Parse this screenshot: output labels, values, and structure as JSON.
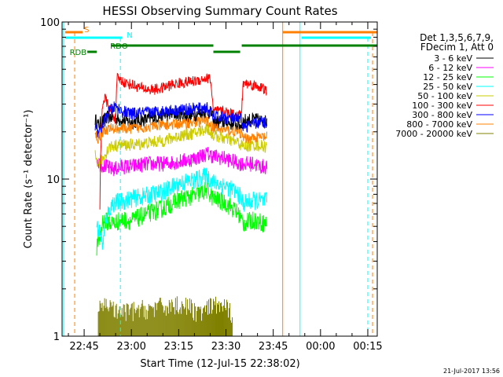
{
  "chart_data": {
    "type": "line",
    "title": "HESSI Observing Summary Count Rates",
    "xlabel": "Start Time (12-Jul-15 22:38:02)",
    "ylabel": "Count Rate (s⁻¹ detector⁻¹)",
    "yscale": "log",
    "ylim": [
      1,
      100
    ],
    "xlim_minutes": [
      0,
      100
    ],
    "x_ticks": [
      {
        "t": 7,
        "label": "22:45"
      },
      {
        "t": 22,
        "label": "23:00"
      },
      {
        "t": 37,
        "label": "23:15"
      },
      {
        "t": 52,
        "label": "23:30"
      },
      {
        "t": 67,
        "label": "23:45"
      },
      {
        "t": 82,
        "label": "00:00"
      },
      {
        "t": 97,
        "label": "00:15"
      }
    ],
    "y_ticks": [
      {
        "v": 1,
        "label": "1"
      },
      {
        "v": 10,
        "label": "10"
      },
      {
        "v": 100,
        "label": "100"
      }
    ],
    "legend": {
      "header": [
        "Det 1,3,5,6,7,9,",
        "FDecim 1, Att 0"
      ],
      "placement": "right"
    },
    "series": [
      {
        "name": "3 - 6 keV",
        "color": "#000000",
        "noise": 0.045,
        "points": [
          [
            10.5,
            24
          ],
          [
            11.5,
            22
          ],
          [
            13,
            23.5
          ],
          [
            15,
            25
          ],
          [
            18,
            24
          ],
          [
            22,
            23
          ],
          [
            27,
            24
          ],
          [
            32,
            25.5
          ],
          [
            36,
            26
          ],
          [
            40,
            25
          ],
          [
            43,
            26
          ],
          [
            46,
            27
          ],
          [
            47.5,
            26
          ],
          [
            48,
            23
          ],
          [
            52,
            23
          ],
          [
            54,
            22.5
          ],
          [
            57,
            22
          ],
          [
            57.5,
            23.5
          ],
          [
            61,
            24
          ],
          [
            63,
            23.5
          ],
          [
            65,
            23
          ]
        ]
      },
      {
        "name": "6 - 12 keV",
        "color": "#ff00ff",
        "noise": 0.05,
        "points": [
          [
            11,
            13.5
          ],
          [
            12,
            12.5
          ],
          [
            14,
            12
          ],
          [
            16,
            11.5
          ],
          [
            19,
            12
          ],
          [
            22,
            12
          ],
          [
            27,
            12.5
          ],
          [
            32,
            12.5
          ],
          [
            38,
            13
          ],
          [
            42,
            13.5
          ],
          [
            46,
            14.5
          ],
          [
            48,
            14
          ],
          [
            52,
            13.5
          ],
          [
            54,
            13
          ],
          [
            57,
            12.5
          ],
          [
            57.5,
            12.5
          ],
          [
            61,
            12.5
          ],
          [
            63,
            12
          ],
          [
            65,
            12
          ]
        ]
      },
      {
        "name": "12 - 25 keV",
        "color": "#00ff00",
        "noise": 0.06,
        "points": [
          [
            11,
            3.6
          ],
          [
            12,
            4.3
          ],
          [
            13,
            5.5
          ],
          [
            16,
            5.2
          ],
          [
            19,
            5.5
          ],
          [
            22,
            5.4
          ],
          [
            27,
            6
          ],
          [
            32,
            6.5
          ],
          [
            38,
            7.5
          ],
          [
            42,
            7.8
          ],
          [
            46,
            8.5
          ],
          [
            48,
            7.5
          ],
          [
            52,
            7
          ],
          [
            54,
            6.5
          ],
          [
            56,
            6
          ],
          [
            57.5,
            5.2
          ],
          [
            61,
            5.5
          ],
          [
            63,
            5.3
          ],
          [
            65,
            5.2
          ]
        ]
      },
      {
        "name": "25 - 50 keV",
        "color": "#00ffff",
        "noise": 0.06,
        "points": [
          [
            11,
            5
          ],
          [
            12,
            4.5
          ],
          [
            13,
            3.8
          ],
          [
            14,
            5.6
          ],
          [
            16,
            7
          ],
          [
            19,
            7.2
          ],
          [
            22,
            7.5
          ],
          [
            27,
            7.8
          ],
          [
            32,
            8.3
          ],
          [
            38,
            9.5
          ],
          [
            42,
            9.8
          ],
          [
            46,
            10.5
          ],
          [
            48,
            9.5
          ],
          [
            52,
            9
          ],
          [
            54,
            8.5
          ],
          [
            56,
            8
          ],
          [
            57.5,
            7
          ],
          [
            61,
            7.3
          ],
          [
            63,
            7.2
          ],
          [
            65,
            7.2
          ]
        ]
      },
      {
        "name": "50 - 100 keV",
        "color": "#cccc00",
        "noise": 0.04,
        "points": [
          [
            10.5,
            14
          ],
          [
            11.5,
            12.5
          ],
          [
            13,
            13.5
          ],
          [
            15,
            16
          ],
          [
            18,
            16.5
          ],
          [
            22,
            16.5
          ],
          [
            27,
            17
          ],
          [
            32,
            17.5
          ],
          [
            38,
            19
          ],
          [
            42,
            19.5
          ],
          [
            46,
            21
          ],
          [
            48,
            19
          ],
          [
            52,
            18
          ],
          [
            54,
            17.5
          ],
          [
            56,
            17
          ],
          [
            57.5,
            16
          ],
          [
            61,
            16.5
          ],
          [
            63,
            16.3
          ],
          [
            65,
            16
          ]
        ]
      },
      {
        "name": "100 - 300 keV",
        "color": "#ff0000",
        "noise": 0.035,
        "points": [
          [
            12,
            6.5
          ],
          [
            12.8,
            30
          ],
          [
            13.5,
            33
          ],
          [
            15,
            28
          ],
          [
            16,
            26
          ],
          [
            17,
            24
          ],
          [
            17.5,
            44
          ],
          [
            20,
            41
          ],
          [
            22,
            40
          ],
          [
            25,
            38
          ],
          [
            28,
            37
          ],
          [
            31,
            37.5
          ],
          [
            35,
            40
          ],
          [
            38,
            41
          ],
          [
            42,
            42
          ],
          [
            45,
            43.5
          ],
          [
            47,
            44
          ],
          [
            48,
            27
          ],
          [
            51,
            27
          ],
          [
            54,
            26
          ],
          [
            56,
            25.5
          ],
          [
            57,
            27
          ],
          [
            57.5,
            41
          ],
          [
            60,
            40
          ],
          [
            63,
            38.5
          ],
          [
            65,
            36
          ]
        ]
      },
      {
        "name": "300 - 800 keV",
        "color": "#0000ff",
        "noise": 0.04,
        "points": [
          [
            10.5,
            21.5
          ],
          [
            11.5,
            19.5
          ],
          [
            13,
            22
          ],
          [
            15,
            27
          ],
          [
            17,
            29
          ],
          [
            19,
            27
          ],
          [
            22,
            26
          ],
          [
            27,
            26.5
          ],
          [
            32,
            27
          ],
          [
            37,
            27.5
          ],
          [
            42,
            28
          ],
          [
            46,
            28.5
          ],
          [
            48,
            25
          ],
          [
            52,
            24.5
          ],
          [
            55,
            24
          ],
          [
            57,
            24
          ],
          [
            57.5,
            21.5
          ],
          [
            61,
            22.5
          ],
          [
            63,
            23
          ],
          [
            65,
            23
          ]
        ]
      },
      {
        "name": "800 - 7000 keV",
        "color": "#ff8000",
        "noise": 0.035,
        "points": [
          [
            10.5,
            19.5
          ],
          [
            11.5,
            18
          ],
          [
            13,
            20
          ],
          [
            15,
            21
          ],
          [
            18,
            21
          ],
          [
            22,
            21
          ],
          [
            27,
            21.5
          ],
          [
            32,
            22
          ],
          [
            38,
            22.5
          ],
          [
            42,
            23
          ],
          [
            46,
            23.5
          ],
          [
            48,
            21
          ],
          [
            52,
            20.5
          ],
          [
            55,
            20
          ],
          [
            57,
            19.5
          ],
          [
            57.5,
            18
          ],
          [
            61,
            18.5
          ],
          [
            63,
            18.5
          ],
          [
            65,
            18.5
          ]
        ]
      },
      {
        "name": "7000 - 20000 keV",
        "color": "#808000",
        "noise": 0,
        "points": [
          [
            11.5,
            1.4
          ],
          [
            13,
            1.6
          ],
          [
            15,
            1.6
          ],
          [
            16.5,
            1.5
          ],
          [
            17,
            1.4
          ],
          [
            38,
            1.6
          ],
          [
            44,
            1.4
          ],
          [
            49,
            1.6
          ],
          [
            52,
            1.5
          ],
          [
            54,
            1.4
          ]
        ]
      }
    ],
    "markers": [
      {
        "label": "S",
        "color": "#ff8000",
        "segments": [
          [
            1,
            6.5
          ],
          [
            70,
            100
          ]
        ],
        "dashed_at": [
          4,
          98.5
        ]
      },
      {
        "label": "N",
        "color": "#00ffff",
        "segments": [
          [
            1,
            19
          ],
          [
            76,
            98
          ]
        ],
        "dashed_at": [
          18.5,
          97
        ]
      },
      {
        "label": "RDO",
        "color": "#008000",
        "segments": [
          [
            15.5,
            48
          ],
          [
            57,
            100
          ]
        ]
      },
      {
        "label": "RDB",
        "color": "#008000",
        "segments": [
          [
            8,
            11
          ],
          [
            48,
            56.5
          ]
        ]
      }
    ],
    "vertical_lines": [
      {
        "t": 0.5,
        "color": "#00ffff",
        "style": "solid"
      },
      {
        "t": 70,
        "color": "#ff8000",
        "style": "solid"
      },
      {
        "t": 75.5,
        "color": "#00ffff",
        "style": "solid"
      }
    ]
  },
  "footer": {
    "date": "21-Jul-2017 13:56"
  }
}
